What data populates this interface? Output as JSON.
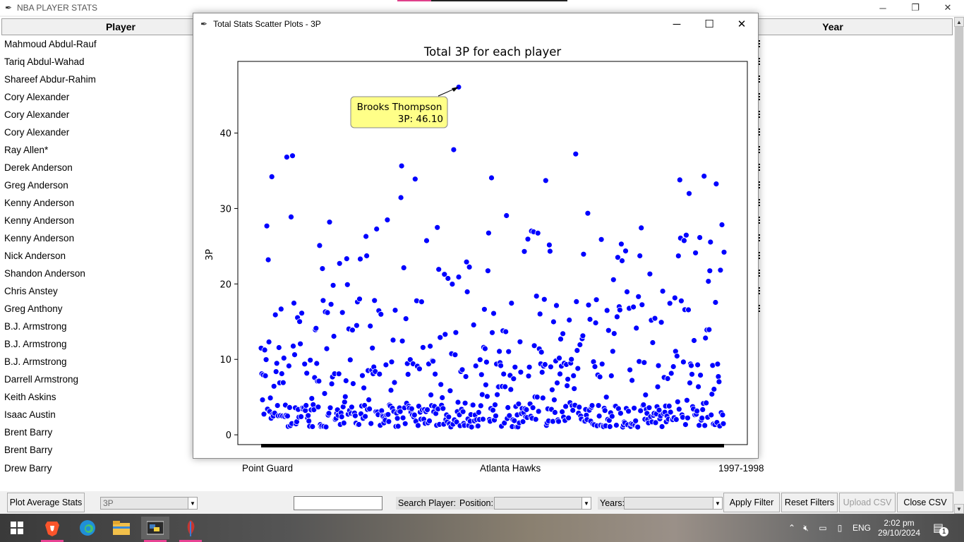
{
  "main_window": {
    "title": "NBA PLAYER STATS",
    "columns": [
      "Player",
      "Year"
    ],
    "rows": [
      "Mahmoud Abdul-Rauf",
      "Tariq Abdul-Wahad",
      "Shareef Abdur-Rahim",
      "Cory Alexander",
      "Cory Alexander",
      "Cory Alexander",
      "Ray Allen*",
      "Derek Anderson",
      "Greg Anderson",
      "Kenny Anderson",
      "Kenny Anderson",
      "Kenny Anderson",
      "Nick Anderson",
      "Shandon Anderson",
      "Chris Anstey",
      "Greg Anthony",
      "B.J. Armstrong",
      "B.J. Armstrong",
      "B.J. Armstrong",
      "Darrell Armstrong",
      "Keith Askins",
      "Isaac Austin",
      "Brent Barry",
      "Brent Barry"
    ],
    "last_row": {
      "player": "Drew Barry",
      "position": "Point Guard",
      "team": "Atlanta Hawks",
      "year": "1997-1998"
    }
  },
  "toolbar": {
    "plot_avg": "Plot Average Stats",
    "stat_select": "3P",
    "search_value": "",
    "search_label": "Search Player:",
    "position_label": "Position:",
    "position_value": "",
    "years_label": "Years:",
    "years_value": "",
    "apply": "Apply Filter",
    "reset": "Reset Filters",
    "upload": "Upload CSV",
    "close": "Close CSV"
  },
  "popup": {
    "title": "Total Stats Scatter Plots - 3P",
    "tooltip_name": "Brooks Thompson",
    "tooltip_value": "3P: 46.10"
  },
  "chart_data": {
    "type": "scatter",
    "title": "Total 3P for each player",
    "xlabel": "",
    "ylabel": "3P",
    "yticks": [
      0,
      10,
      20,
      30,
      40
    ],
    "ylim": [
      -1.3,
      49.5
    ],
    "point_color": "#0000ff",
    "highlight": {
      "name": "Brooks Thompson",
      "value": 46.1
    }
  },
  "taskbar": {
    "language": "ENG",
    "time": "2:02 pm",
    "date": "29/10/2024",
    "notifications": "1"
  }
}
